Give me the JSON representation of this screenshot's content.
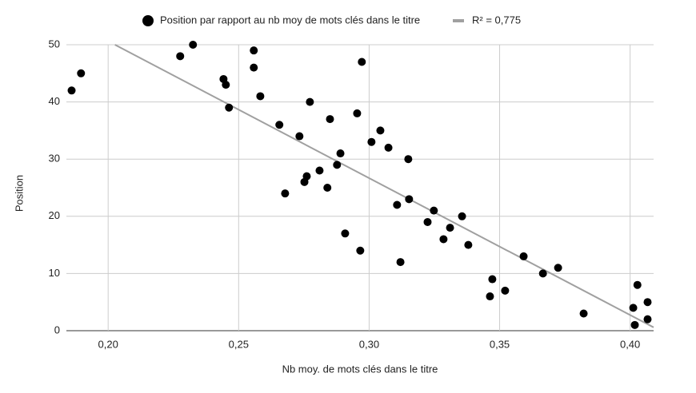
{
  "chart_data": {
    "type": "scatter",
    "x_label": "Nb moy. de mots clés dans le titre",
    "y_label": "Position",
    "series": [
      {
        "name": "Position par rapport au nb moy de mots clés dans le titre",
        "color": "#000000",
        "x": [
          0.186,
          0.1896,
          0.2276,
          0.2325,
          0.2442,
          0.2451,
          0.2463,
          0.2558,
          0.2558,
          0.2583,
          0.2656,
          0.2678,
          0.2733,
          0.2752,
          0.2761,
          0.2773,
          0.281,
          0.284,
          0.285,
          0.2877,
          0.289,
          0.2908,
          0.2954,
          0.2966,
          0.2972,
          0.3009,
          0.3043,
          0.3074,
          0.3107,
          0.312,
          0.315,
          0.3153,
          0.3224,
          0.3248,
          0.3285,
          0.331,
          0.3356,
          0.338,
          0.3463,
          0.3472,
          0.3521,
          0.3592,
          0.3666,
          0.3724,
          0.3822,
          0.4012,
          0.4018,
          0.4028,
          0.4067,
          0.4067
        ],
        "values": [
          42,
          45,
          48,
          50,
          44,
          43,
          39,
          49,
          46,
          41,
          36,
          24,
          34,
          26,
          27,
          40,
          28,
          25,
          37,
          29,
          31,
          17,
          38,
          14,
          47,
          33,
          35,
          32,
          22,
          12,
          30,
          23,
          19,
          21,
          16,
          18,
          20,
          15,
          6,
          9,
          7,
          13,
          10,
          11,
          3,
          4,
          1,
          8,
          5,
          2
        ]
      }
    ],
    "trendline": {
      "name": "R² = 0,775",
      "color": "#a0a0a0",
      "slope": -239.4,
      "intercept": 98.5
    },
    "xlim": [
      0.184,
      0.409
    ],
    "ylim": [
      0,
      50
    ],
    "xticks": [
      {
        "value": 0.2,
        "label": "0,20"
      },
      {
        "value": 0.25,
        "label": "0,25"
      },
      {
        "value": 0.3,
        "label": "0,30"
      },
      {
        "value": 0.35,
        "label": "0,35"
      },
      {
        "value": 0.4,
        "label": "0,40"
      }
    ],
    "yticks": [
      0,
      10,
      20,
      30,
      40,
      50
    ],
    "grid": true,
    "legend": "top"
  }
}
